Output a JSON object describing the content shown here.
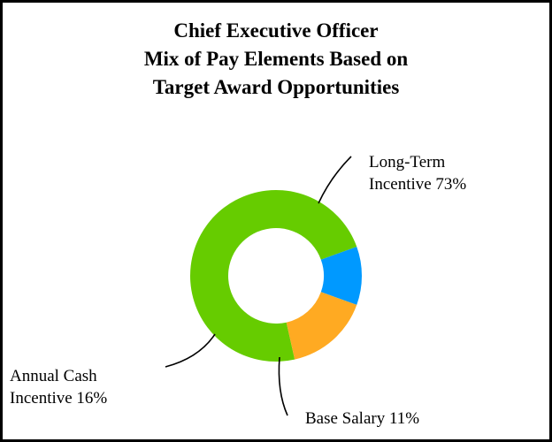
{
  "chart_data": {
    "type": "pie",
    "style": "donut",
    "title_lines": [
      "Chief Executive Officer",
      "Mix of Pay Elements Based on",
      "Target Award Opportunities"
    ],
    "slices": [
      {
        "label_lines": [
          "Long-Term",
          "Incentive 73%"
        ],
        "value": 73,
        "color": "#66cc00"
      },
      {
        "label_lines": [
          "Base Salary 11%"
        ],
        "value": 11,
        "color": "#0099ff"
      },
      {
        "label_lines": [
          "Annual Cash",
          "Incentive 16%"
        ],
        "value": 16,
        "color": "#ffaa22"
      }
    ],
    "legend": "none"
  }
}
